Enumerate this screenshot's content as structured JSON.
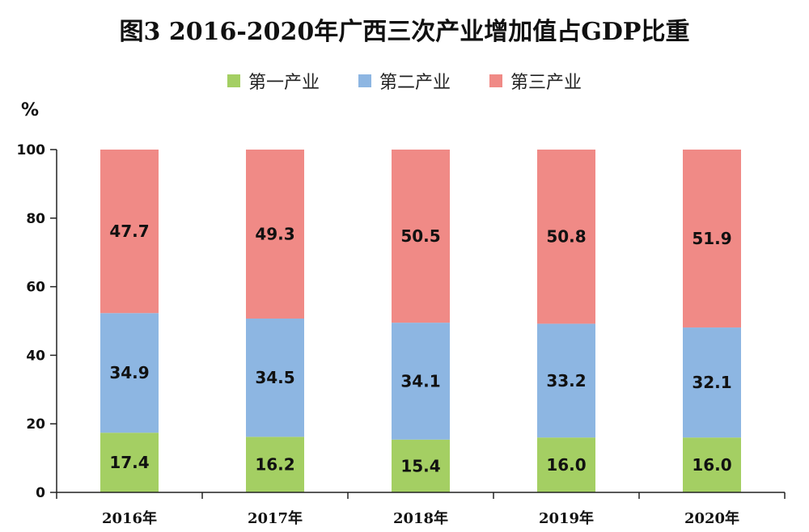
{
  "chart_data": {
    "type": "bar",
    "stacked": true,
    "title": "图3 2016-2020年广西三次产业增加值占GDP比重",
    "ylabel": "%",
    "xlabel": "",
    "ylim": [
      0,
      100
    ],
    "yticks": [
      "0",
      "20",
      "40",
      "60",
      "80",
      "100"
    ],
    "grid": false,
    "legend_position": "top",
    "categories": [
      "2016年",
      "2017年",
      "2018年",
      "2019年",
      "2020年"
    ],
    "series": [
      {
        "name": "第一产业",
        "color": "#a4cf63",
        "values": [
          17.4,
          16.2,
          15.4,
          16.0,
          16.0
        ],
        "labels": [
          "17.4",
          "16.2",
          "15.4",
          "16.0",
          "16.0"
        ]
      },
      {
        "name": "第二产业",
        "color": "#8db6e2",
        "values": [
          34.9,
          34.5,
          34.1,
          33.2,
          32.1
        ],
        "labels": [
          "34.9",
          "34.5",
          "34.1",
          "33.2",
          "32.1"
        ]
      },
      {
        "name": "第三产业",
        "color": "#f08a86",
        "values": [
          47.7,
          49.3,
          50.5,
          50.8,
          51.9
        ],
        "labels": [
          "47.7",
          "49.3",
          "50.5",
          "50.8",
          "51.9"
        ]
      }
    ]
  }
}
